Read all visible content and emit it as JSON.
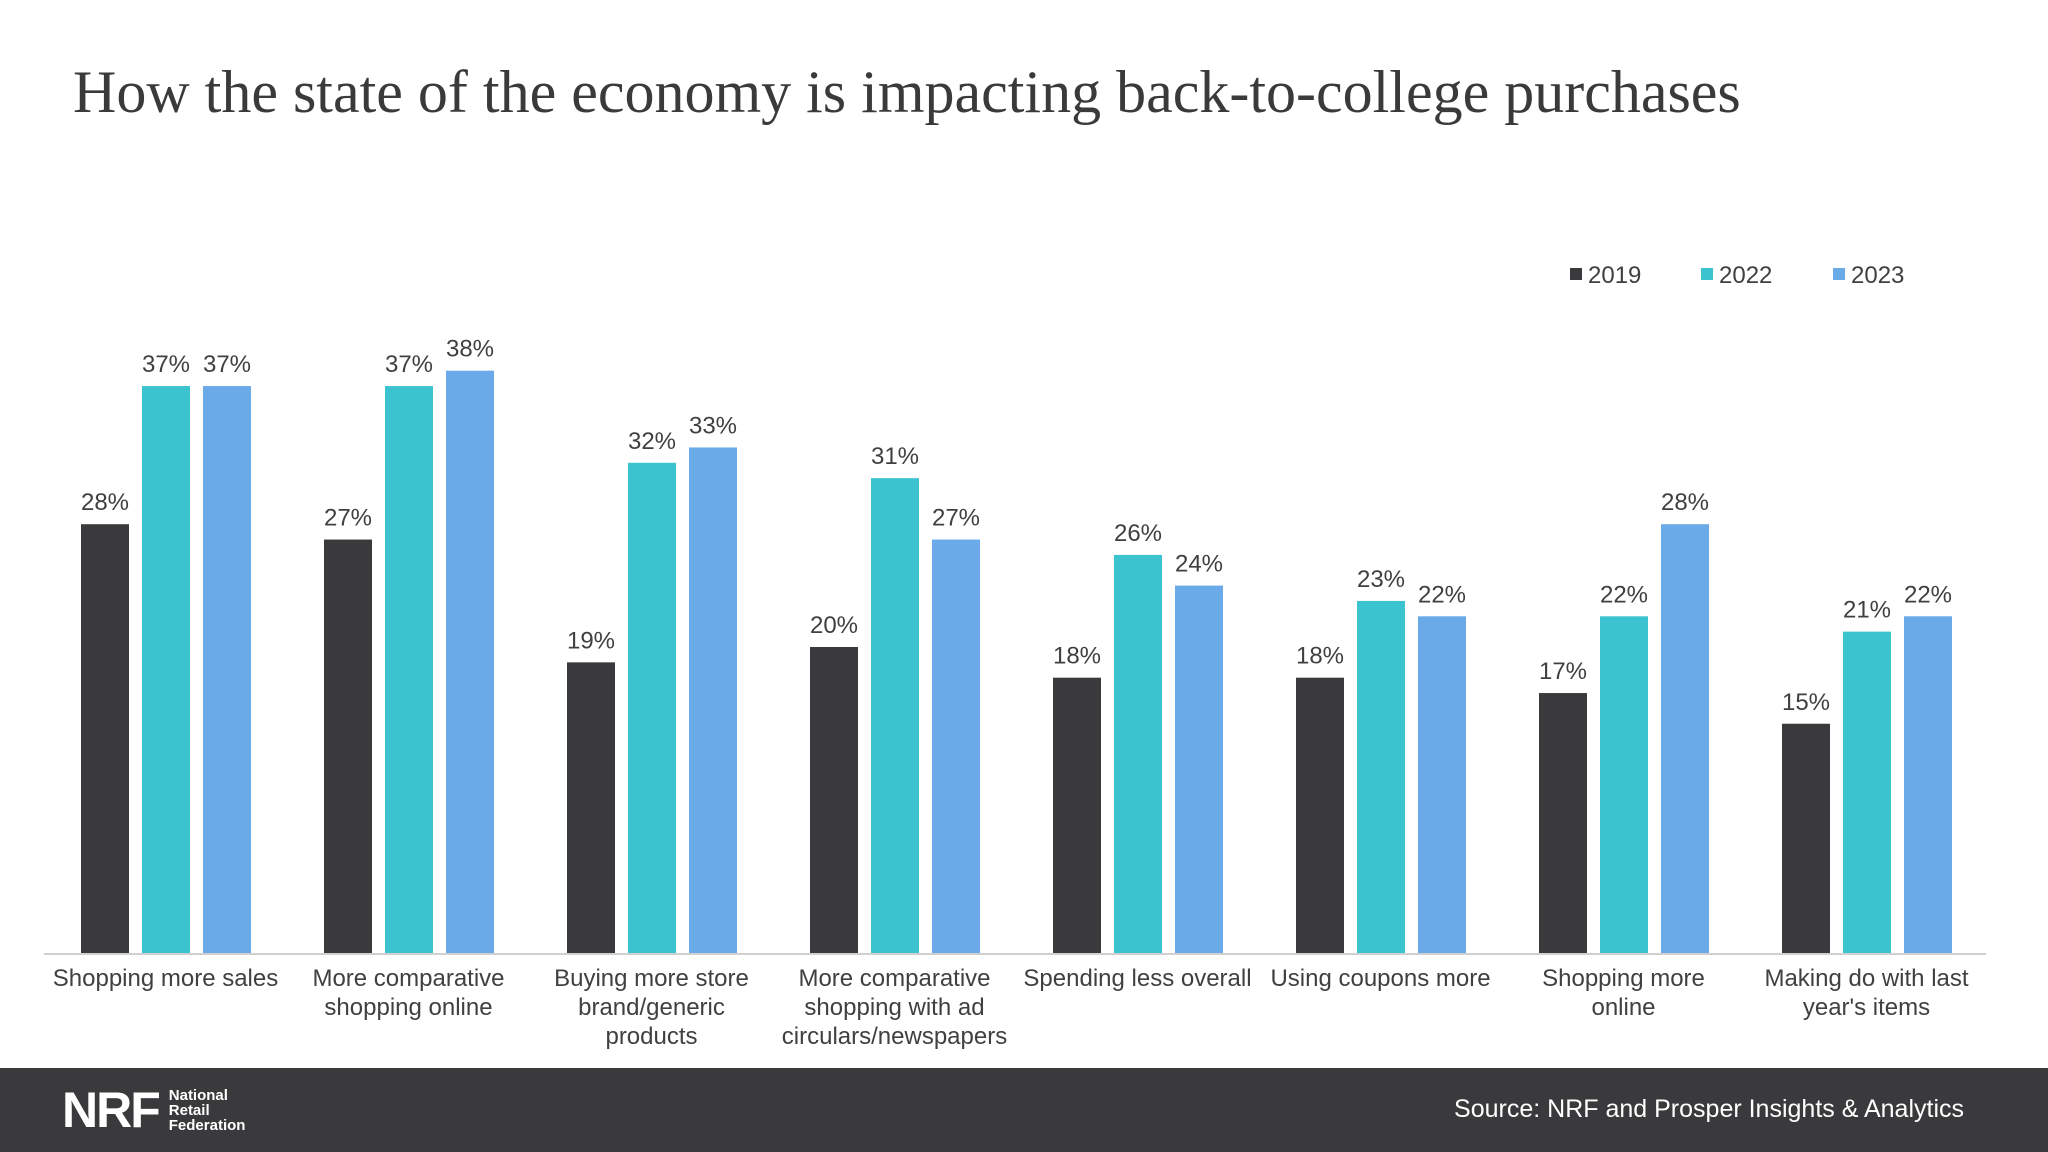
{
  "header": {
    "title": "How the state of the economy is impacting back-to-college purchases"
  },
  "footer": {
    "logo_mark": "NRF",
    "logo_lines": [
      "National",
      "Retail",
      "Federation"
    ],
    "source": "Source: NRF and Prosper Insights & Analytics"
  },
  "chart_data": {
    "type": "bar",
    "title": "How the state of the economy is impacting back-to-college purchases",
    "categories": [
      [
        "Shopping more sales"
      ],
      [
        "More comparative",
        "shopping online"
      ],
      [
        "Buying more store",
        "brand/generic",
        "products"
      ],
      [
        "More comparative",
        "shopping with ad",
        "circulars/newspapers"
      ],
      [
        "Spending less overall"
      ],
      [
        "Using coupons more"
      ],
      [
        "Shopping more",
        "online"
      ],
      [
        "Making do with last",
        "year's items"
      ]
    ],
    "series": [
      {
        "name": "2019",
        "color": "#3a393b",
        "values": [
          28,
          27,
          19,
          20,
          18,
          18,
          17,
          15
        ]
      },
      {
        "name": "2022",
        "color": "#3bc3cf",
        "values": [
          37,
          37,
          32,
          31,
          26,
          23,
          22,
          21
        ]
      },
      {
        "name": "2023",
        "color": "#6aaae8",
        "values": [
          37,
          38,
          33,
          27,
          24,
          22,
          28,
          22
        ]
      }
    ],
    "value_suffix": "%",
    "ylim": [
      0,
      40
    ],
    "grid": false,
    "legend_position": "top-right"
  }
}
